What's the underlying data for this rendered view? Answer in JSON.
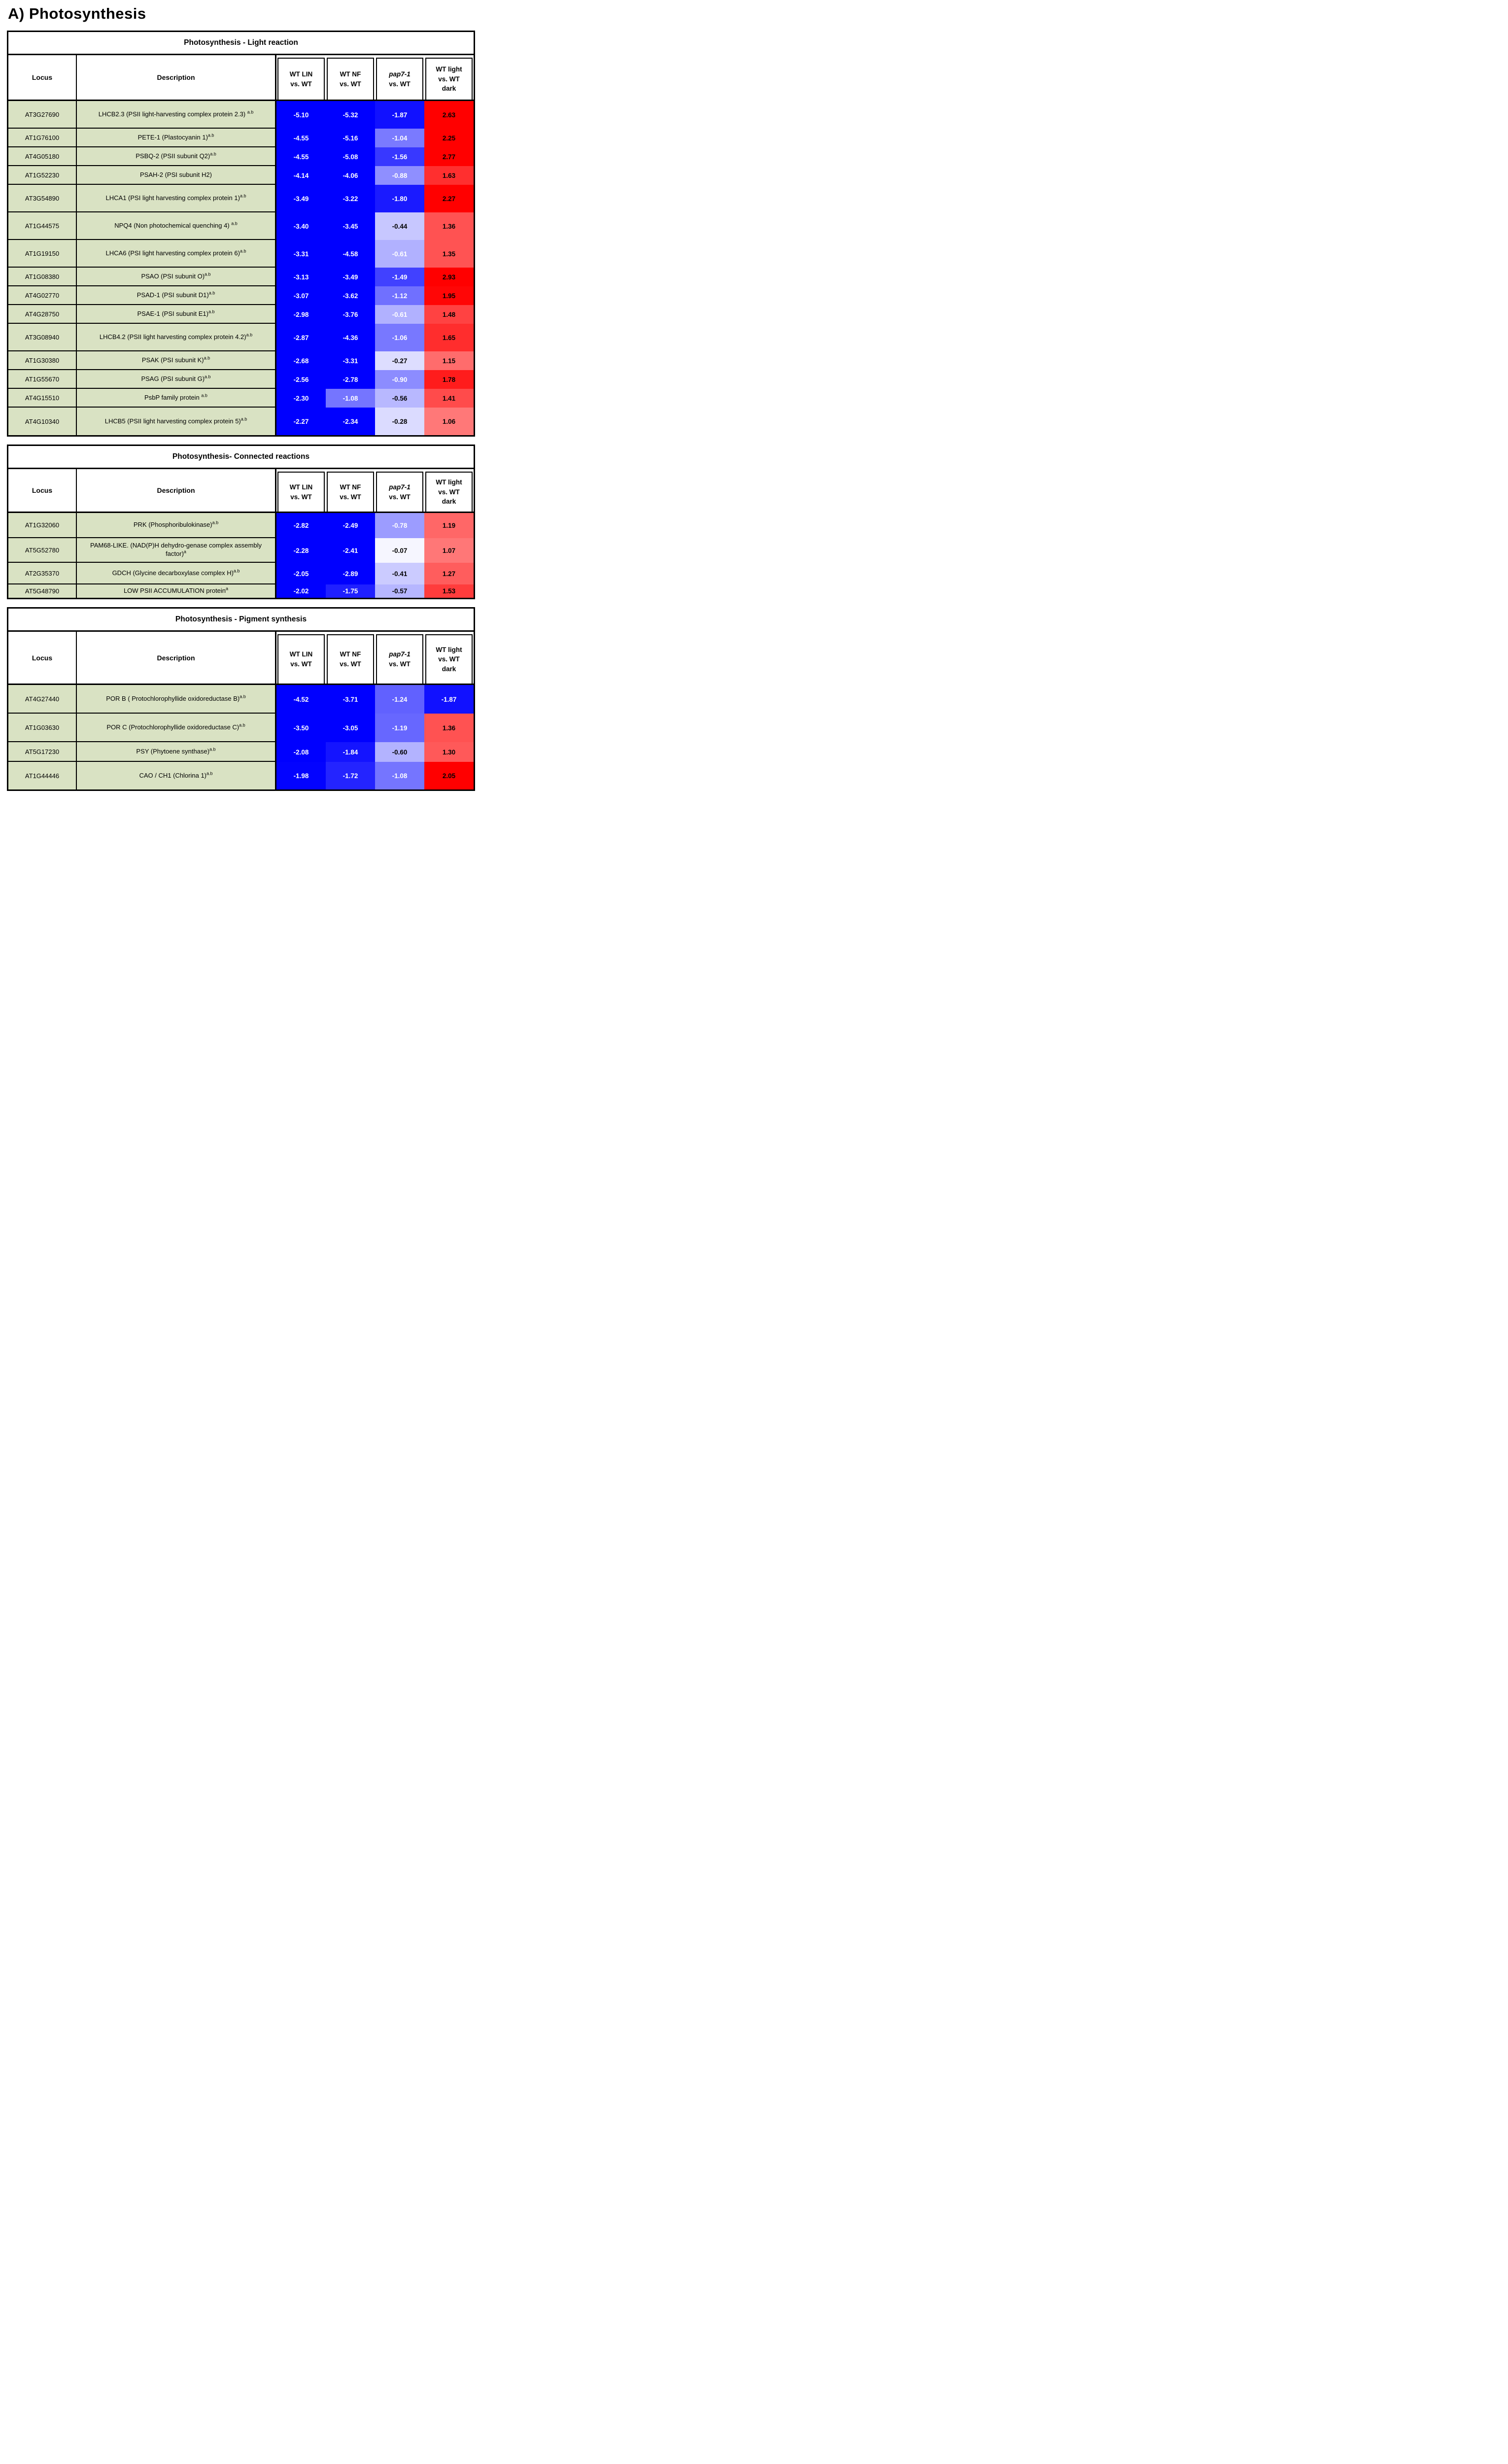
{
  "page_title": "A) Photosynthesis",
  "header": {
    "locus_label": "Locus",
    "description_label": "Description",
    "comparisons": [
      {
        "lines": [
          "WT LIN",
          "vs. WT"
        ],
        "italic_first": false
      },
      {
        "lines": [
          "WT NF",
          "vs. WT"
        ],
        "italic_first": false
      },
      {
        "lines": [
          "pap7-1",
          "vs. WT"
        ],
        "italic_first": true
      },
      {
        "lines": [
          "WT light",
          "vs. WT",
          "dark"
        ],
        "italic_first": false
      }
    ]
  },
  "chart_data": {
    "type": "heatmap",
    "value_columns": [
      "WT LIN vs. WT",
      "WT NF vs. WT",
      "pap7-1 vs. WT",
      "WT light vs. WT dark"
    ],
    "colormap": {
      "negative": "#0000ff",
      "positive": "#ff0000",
      "neutral": "#ffffff",
      "cap": 2.0,
      "white_text_min_magnitude": 0.605,
      "row_label_background": "#d9e2c3"
    },
    "tables": [
      {
        "title": "Photosynthesis - Light reaction",
        "head_h": 90,
        "rows": [
          {
            "locus": "AT3G27690",
            "description": "LHCB2.3 (PSII light-harvesting complex protein 2.3) ",
            "sup": "a.b",
            "values": [
              -5.1,
              -5.32,
              -1.87,
              2.63
            ],
            "h": 56
          },
          {
            "locus": "AT1G76100",
            "description": "PETE-1 (Plastocyanin 1)",
            "sup": "a.b",
            "values": [
              -4.55,
              -5.16,
              -1.04,
              2.25
            ],
            "h": 38
          },
          {
            "locus": "AT4G05180",
            "description": "PSBQ-2 (PSII subunit Q2)",
            "sup": "a.b",
            "values": [
              -4.55,
              -5.08,
              -1.56,
              2.77
            ],
            "h": 38
          },
          {
            "locus": "AT1G52230",
            "description": "PSAH-2 (PSI subunit H2)",
            "sup": "",
            "values": [
              -4.14,
              -4.06,
              -0.88,
              1.63
            ],
            "h": 38
          },
          {
            "locus": "AT3G54890",
            "description": "LHCA1 (PSI light harvesting complex protein 1)",
            "sup": "a.b",
            "values": [
              -3.49,
              -3.22,
              -1.8,
              2.27
            ],
            "h": 56
          },
          {
            "locus": "AT1G44575",
            "description": "NPQ4 (Non photochemical quenching 4) ",
            "sup": "a.b",
            "values": [
              -3.4,
              -3.45,
              -0.44,
              1.36
            ],
            "h": 56
          },
          {
            "locus": "AT1G19150",
            "description": "LHCA6 (PSI light harvesting complex protein 6)",
            "sup": "a.b",
            "values": [
              -3.31,
              -4.58,
              -0.61,
              1.35
            ],
            "h": 56
          },
          {
            "locus": "AT1G08380",
            "description": "PSAO (PSI subunit O)",
            "sup": "a.b",
            "values": [
              -3.13,
              -3.49,
              -1.49,
              2.93
            ],
            "h": 38
          },
          {
            "locus": "AT4G02770",
            "description": "PSAD-1 (PSI subunit D1)",
            "sup": "a.b",
            "values": [
              -3.07,
              -3.62,
              -1.12,
              1.95
            ],
            "h": 38
          },
          {
            "locus": "AT4G28750",
            "description": "PSAE-1 (PSI subunit E1)",
            "sup": "a.b",
            "values": [
              -2.98,
              -3.76,
              -0.61,
              1.48
            ],
            "h": 38
          },
          {
            "locus": "AT3G08940",
            "description": "LHCB4.2 (PSII light harvesting complex protein 4.2)",
            "sup": "a.b",
            "values": [
              -2.87,
              -4.36,
              -1.06,
              1.65
            ],
            "h": 56
          },
          {
            "locus": "AT1G30380",
            "description": "PSAK (PSI subunit K)",
            "sup": "a.b",
            "values": [
              -2.68,
              -3.31,
              -0.27,
              1.15
            ],
            "h": 38
          },
          {
            "locus": "AT1G55670",
            "description": "PSAG (PSI subunit G)",
            "sup": "a.b",
            "values": [
              -2.56,
              -2.78,
              -0.9,
              1.78
            ],
            "h": 38
          },
          {
            "locus": "AT4G15510",
            "description": "PsbP family  protein ",
            "sup": "a.b",
            "values": [
              -2.3,
              -1.08,
              -0.56,
              1.41
            ],
            "h": 38
          },
          {
            "locus": "AT4G10340",
            "description": "LHCB5 (PSII light harvesting complex protein 5)",
            "sup": "a.b",
            "values": [
              -2.27,
              -2.34,
              -0.28,
              1.06
            ],
            "h": 56
          }
        ]
      },
      {
        "title": "Photosynthesis- Connected reactions",
        "head_h": 86,
        "rows": [
          {
            "locus": "AT1G32060",
            "description": "PRK (Phosphoribulokinase)",
            "sup": "a.b",
            "values": [
              -2.82,
              -2.49,
              -0.78,
              1.19
            ],
            "h": 51
          },
          {
            "locus": "AT5G52780",
            "description": "PAM68-LIKE. (NAD(P)H dehydro-genase complex assembly factor)",
            "sup": "a",
            "values": [
              -2.28,
              -2.41,
              -0.07,
              1.07
            ],
            "h": 50
          },
          {
            "locus": "AT2G35370",
            "description": "GDCH (Glycine decarboxylase complex H)",
            "sup": "a.b",
            "values": [
              -2.05,
              -2.89,
              -0.41,
              1.27
            ],
            "h": 44
          },
          {
            "locus": "AT5G48790",
            "description": "LOW PSII ACCUMULATION protein",
            "sup": "a",
            "values": [
              -2.02,
              -1.75,
              -0.57,
              1.53
            ],
            "h": 27
          }
        ]
      },
      {
        "title": "Photosynthesis - Pigment synthesis",
        "head_h": 105,
        "rows": [
          {
            "locus": "AT4G27440",
            "description": "POR B ( Protochlorophyllide oxidoreductase B)",
            "sup": "a.b",
            "values": [
              -4.52,
              -3.71,
              -1.24,
              -1.87
            ],
            "h": 58
          },
          {
            "locus": "AT1G03630",
            "description": "POR C (Protochlorophyllide oxidoreductase C)",
            "sup": "a.b",
            "values": [
              -3.5,
              -3.05,
              -1.19,
              1.36
            ],
            "h": 58
          },
          {
            "locus": "AT5G17230",
            "description": "PSY (Phytoene synthase)",
            "sup": "a.b",
            "values": [
              -2.08,
              -1.84,
              -0.6,
              1.3
            ],
            "h": 40
          },
          {
            "locus": "AT1G44446",
            "description": "CAO / CH1 (Chlorina 1)",
            "sup": "a.b",
            "values": [
              -1.98,
              -1.72,
              -1.08,
              2.05
            ],
            "h": 56
          }
        ]
      }
    ]
  }
}
